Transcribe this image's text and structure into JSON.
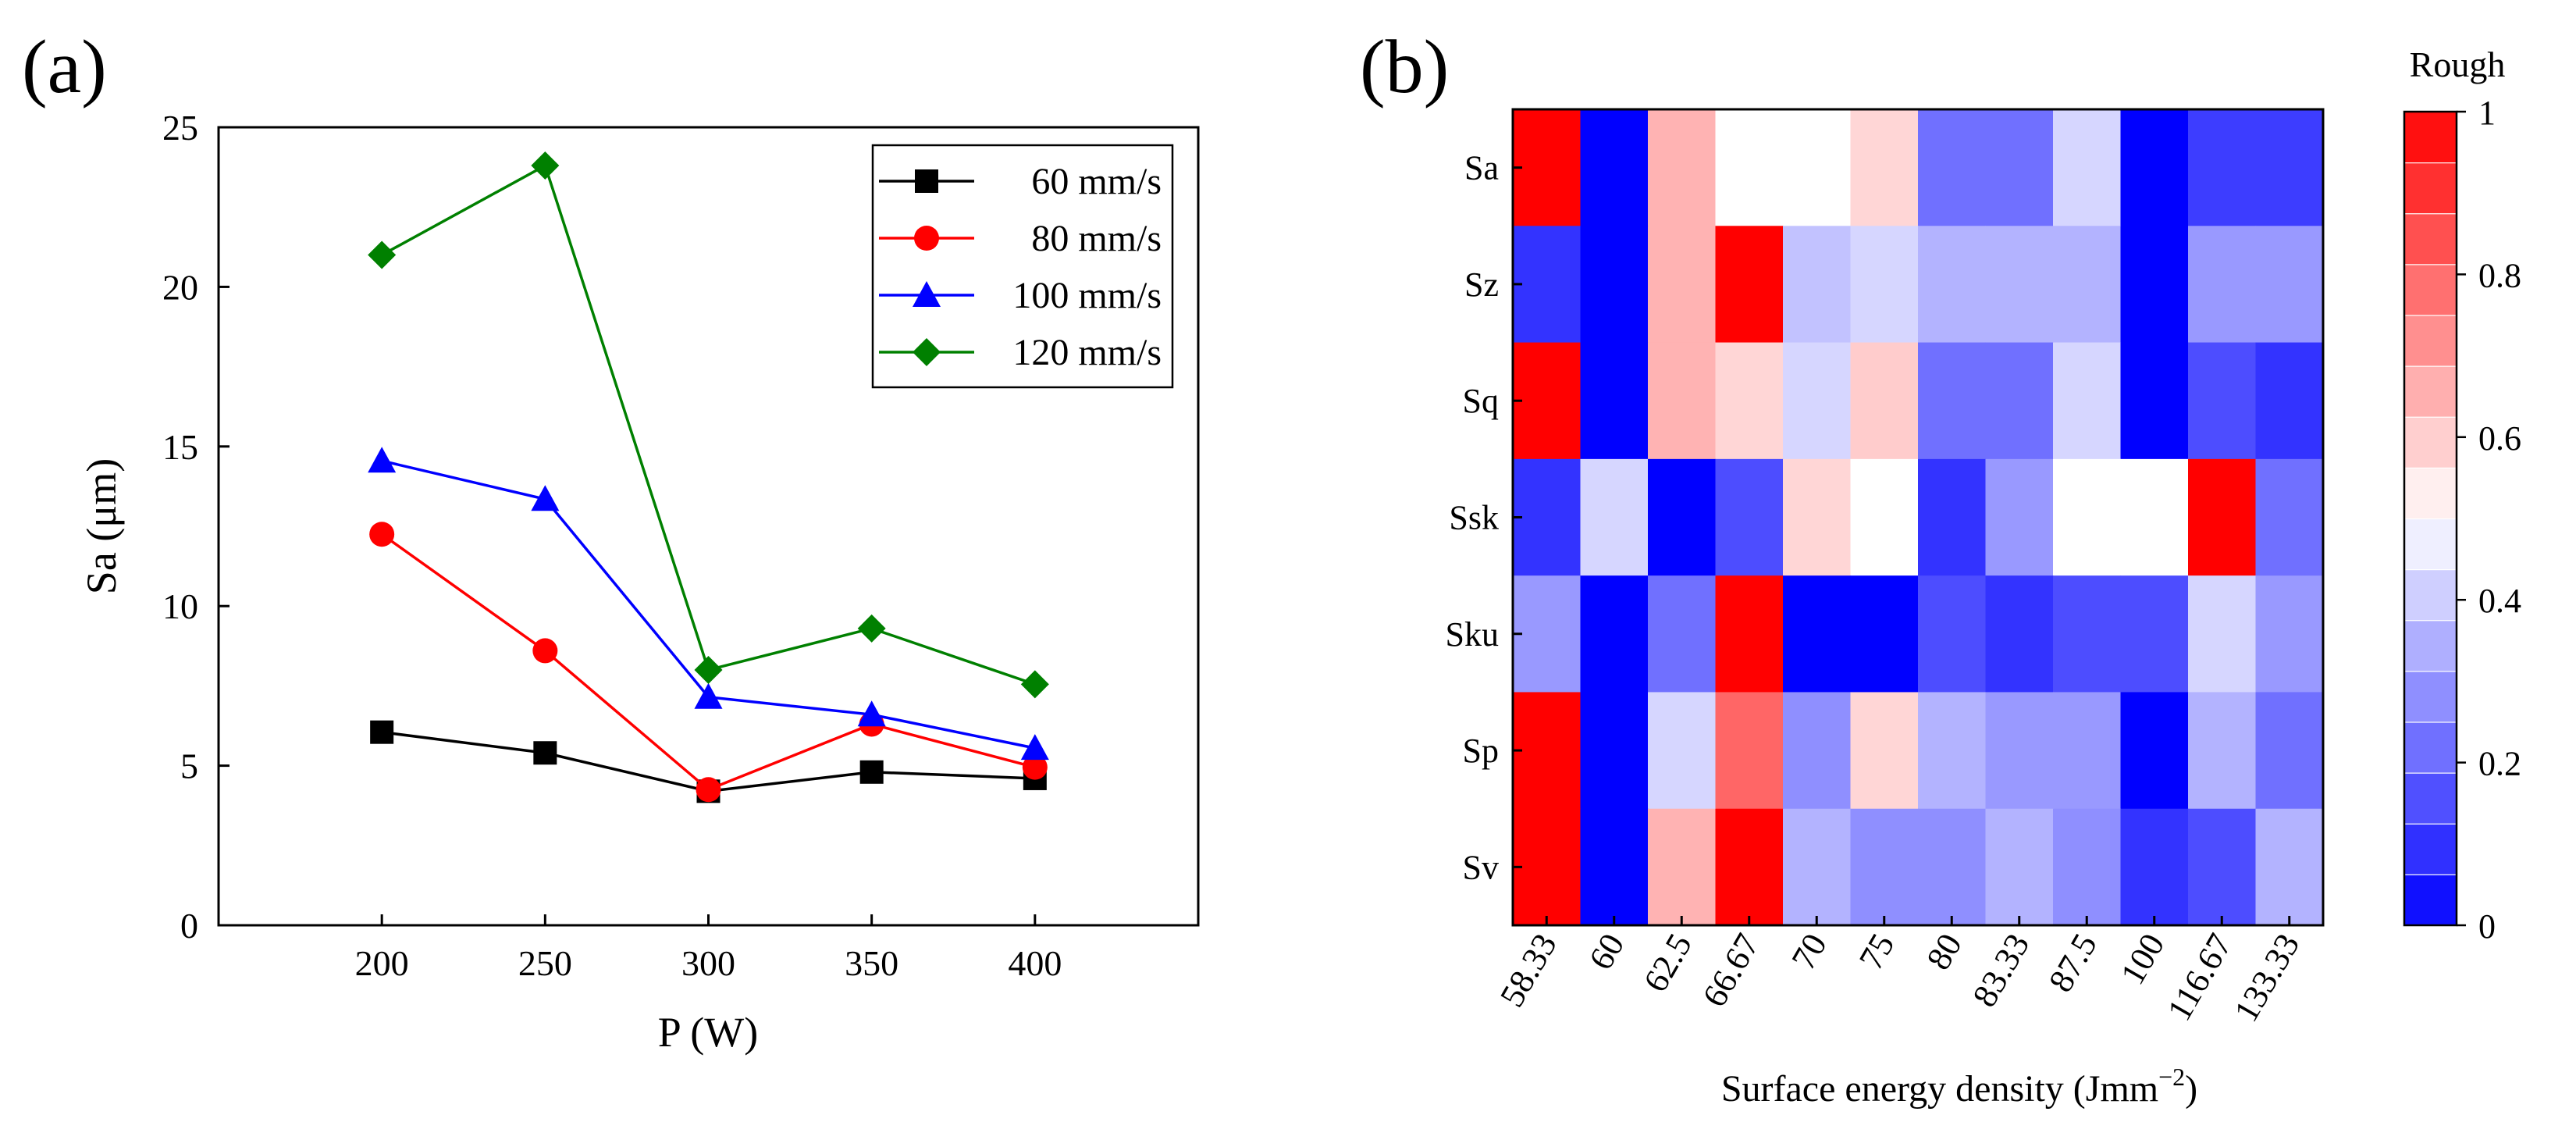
{
  "colors": {
    "black": "#000000",
    "red": "#ff0000",
    "blue": "#0000ff",
    "green": "#008000",
    "cold": "#0000ff",
    "neutral": "#ffffff",
    "hot": "#ff0000"
  },
  "chart_data": [
    {
      "panel_label": "(a)",
      "type": "line",
      "title": "",
      "xlabel": "P (W)",
      "ylabel": "Sa (μm)",
      "x": [
        200,
        250,
        300,
        350,
        400
      ],
      "xlim": [
        150,
        450
      ],
      "ylim": [
        0,
        25
      ],
      "xticks": [
        200,
        250,
        300,
        350,
        400
      ],
      "yticks": [
        0,
        5,
        10,
        15,
        20,
        25
      ],
      "grid": false,
      "legend_position": "top-right",
      "series": [
        {
          "name": "60 mm/s",
          "marker": "square",
          "color": "#000000",
          "values": [
            6.05,
            5.4,
            4.2,
            4.8,
            4.6
          ]
        },
        {
          "name": "80 mm/s",
          "marker": "circle",
          "color": "#ff0000",
          "values": [
            12.25,
            8.6,
            4.25,
            6.3,
            4.95
          ]
        },
        {
          "name": "100 mm/s",
          "marker": "triangle",
          "color": "#0000ff",
          "values": [
            14.55,
            13.35,
            7.15,
            6.6,
            5.55
          ]
        },
        {
          "name": "120 mm/s",
          "marker": "diamond",
          "color": "#008000",
          "values": [
            21.0,
            23.8,
            8.0,
            9.3,
            7.55
          ]
        }
      ]
    },
    {
      "panel_label": "(b)",
      "type": "heatmap",
      "title": "",
      "xlabel": "Surface energy density (Jmm",
      "xlabel_superscript": "−2",
      "xlabel_suffix": ")",
      "ylabel": "",
      "columns": [
        "58.33",
        "60",
        "62.5",
        "66.67",
        "70",
        "75",
        "80",
        "83.33",
        "87.5",
        "100",
        "116.67",
        "133.33"
      ],
      "rows": [
        "Sa",
        "Sz",
        "Sq",
        "Ssk",
        "Sku",
        "Sp",
        "Sv"
      ],
      "values": [
        [
          1.0,
          0.0,
          0.65,
          0.5,
          0.5,
          0.58,
          0.22,
          0.22,
          0.42,
          0.0,
          0.12,
          0.12
        ],
        [
          0.1,
          0.0,
          0.65,
          1.0,
          0.38,
          0.42,
          0.35,
          0.35,
          0.35,
          0.0,
          0.3,
          0.3
        ],
        [
          1.0,
          0.0,
          0.65,
          0.58,
          0.42,
          0.6,
          0.22,
          0.22,
          0.42,
          0.0,
          0.15,
          0.1
        ],
        [
          0.1,
          0.42,
          0.0,
          0.15,
          0.58,
          0.5,
          0.1,
          0.3,
          0.5,
          0.5,
          1.0,
          0.22
        ],
        [
          0.3,
          0.0,
          0.22,
          1.0,
          0.0,
          0.0,
          0.15,
          0.1,
          0.15,
          0.15,
          0.42,
          0.3
        ],
        [
          1.0,
          0.0,
          0.42,
          0.8,
          0.28,
          0.58,
          0.35,
          0.3,
          0.3,
          0.0,
          0.35,
          0.22
        ],
        [
          1.0,
          0.0,
          0.65,
          1.0,
          0.35,
          0.28,
          0.28,
          0.35,
          0.28,
          0.1,
          0.15,
          0.35
        ]
      ],
      "colorbar": {
        "title": "Rough",
        "range": [
          0,
          1
        ],
        "levels": 16,
        "ticks": [
          0,
          0.2,
          0.4,
          0.6,
          0.8,
          1
        ],
        "tick_labels": [
          "0",
          "0.2",
          "0.4",
          "0.6",
          "0.8",
          "1"
        ]
      }
    }
  ]
}
